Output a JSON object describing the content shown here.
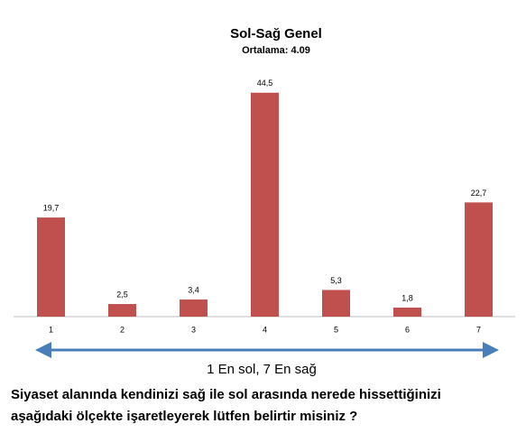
{
  "chart_data": {
    "type": "bar",
    "title": "Sol-Sağ Genel",
    "subtitle": "Ortalama: 4.09",
    "categories": [
      "1",
      "2",
      "3",
      "4",
      "5",
      "6",
      "7"
    ],
    "values": [
      19.7,
      2.5,
      3.4,
      44.5,
      5.3,
      1.8,
      22.7
    ],
    "value_labels": [
      "19,7",
      "2,5",
      "3,4",
      "44,5",
      "5,3",
      "1,8",
      "22,7"
    ],
    "color": "#c0504d",
    "ylim": [
      0,
      45
    ],
    "annotation": "1 En sol,  7 En sağ",
    "question": [
      "Siyaset alanında kendinizi sağ ile sol arasında nerede hissettiğinizi",
      "aşağıdaki ölçekte işaretleyerek  lütfen belirtir misiniz ?"
    ]
  }
}
